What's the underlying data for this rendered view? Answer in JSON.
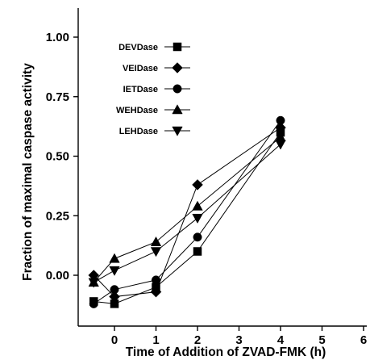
{
  "chart_data": {
    "type": "line",
    "title": "",
    "xlabel": "Time of Addition of ZVAD-FMK (h)",
    "ylabel": "Fraction of maximal caspase activity",
    "xlim": [
      -1,
      6
    ],
    "ylim": [
      -0.2,
      1.1
    ],
    "x_ticks": [
      "0",
      "1",
      "2",
      "3",
      "4",
      "5",
      "6"
    ],
    "y_ticks": [
      "0.00",
      "0.25",
      "0.50",
      "0.75",
      "1.00"
    ],
    "legend_placement": "top-left",
    "grid": false,
    "series": [
      {
        "name": "DEVDase",
        "marker": "square",
        "x": [
          -0.5,
          0,
          1,
          2,
          4
        ],
        "y": [
          -0.11,
          -0.12,
          -0.05,
          0.1,
          0.6
        ]
      },
      {
        "name": "VEIDase",
        "marker": "diamond",
        "x": [
          -0.5,
          0,
          1,
          2,
          4
        ],
        "y": [
          0.0,
          -0.09,
          -0.07,
          0.38,
          0.62
        ]
      },
      {
        "name": "IETDase",
        "marker": "circle",
        "x": [
          -0.5,
          0,
          1,
          2,
          4
        ],
        "y": [
          -0.12,
          -0.06,
          -0.02,
          0.16,
          0.65
        ]
      },
      {
        "name": "WEHDase",
        "marker": "triangle-up",
        "x": [
          -0.5,
          0,
          1,
          2,
          4
        ],
        "y": [
          -0.03,
          0.07,
          0.14,
          0.29,
          0.58
        ]
      },
      {
        "name": "LEHDase",
        "marker": "triangle-down",
        "x": [
          -0.5,
          0,
          1,
          2,
          4
        ],
        "y": [
          -0.03,
          0.02,
          0.1,
          0.24,
          0.55
        ]
      }
    ]
  }
}
